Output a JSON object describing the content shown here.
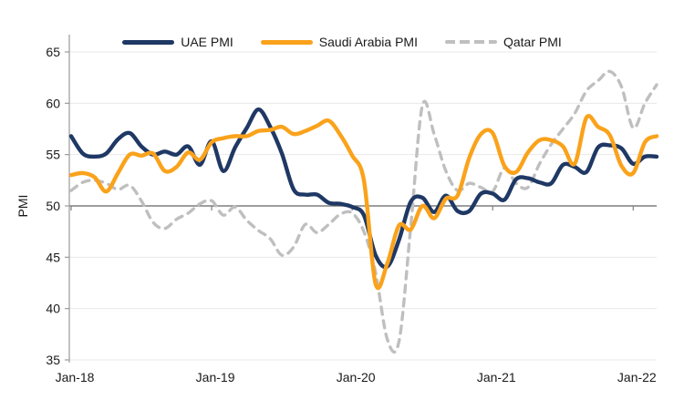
{
  "chart_data": {
    "type": "line",
    "title": "",
    "ylabel": "PMI",
    "xlabel": "",
    "ylim": [
      35,
      65
    ],
    "y_ticks": [
      35,
      40,
      45,
      50,
      55,
      60,
      65
    ],
    "x_axis_tick_labels": [
      {
        "label": "Jan-18",
        "month_index": 0
      },
      {
        "label": "Jan-19",
        "month_index": 12
      },
      {
        "label": "Jan-20",
        "month_index": 24
      },
      {
        "label": "Jan-21",
        "month_index": 36
      },
      {
        "label": "Jan-22",
        "month_index": 48
      }
    ],
    "reference_line_value": 50,
    "grid": "horizontal-light",
    "legend_position": "top-center",
    "months": [
      "Jan-18",
      "Feb-18",
      "Mar-18",
      "Apr-18",
      "May-18",
      "Jun-18",
      "Jul-18",
      "Aug-18",
      "Sep-18",
      "Oct-18",
      "Nov-18",
      "Dec-18",
      "Jan-19",
      "Feb-19",
      "Mar-19",
      "Apr-19",
      "May-19",
      "Jun-19",
      "Jul-19",
      "Aug-19",
      "Sep-19",
      "Oct-19",
      "Nov-19",
      "Dec-19",
      "Jan-20",
      "Feb-20",
      "Mar-20",
      "Apr-20",
      "May-20",
      "Jun-20",
      "Jul-20",
      "Aug-20",
      "Sep-20",
      "Oct-20",
      "Nov-20",
      "Dec-20",
      "Jan-21",
      "Feb-21",
      "Mar-21",
      "Apr-21",
      "May-21",
      "Jun-21",
      "Jul-21",
      "Aug-21",
      "Sep-21",
      "Oct-21",
      "Nov-21",
      "Dec-21",
      "Jan-22",
      "Feb-22",
      "Mar-22"
    ],
    "series": [
      {
        "name": "UAE PMI",
        "color": "#1f3864",
        "line_style": "solid",
        "values": [
          56.8,
          55.1,
          54.8,
          55.1,
          56.5,
          57.1,
          55.8,
          55.0,
          55.3,
          55.0,
          55.8,
          54.0,
          56.3,
          53.4,
          55.7,
          57.6,
          59.4,
          57.7,
          55.1,
          51.6,
          51.1,
          51.1,
          50.3,
          50.2,
          49.9,
          49.1,
          45.2,
          44.1,
          46.7,
          50.4,
          50.8,
          49.4,
          51.0,
          49.5,
          49.5,
          51.2,
          51.2,
          50.6,
          52.6,
          52.7,
          52.3,
          52.2,
          54.0,
          53.8,
          53.3,
          55.7,
          55.9,
          55.6,
          54.1,
          54.8,
          54.8
        ]
      },
      {
        "name": "Saudi Arabia PMI",
        "color": "#faa21b",
        "line_style": "solid",
        "values": [
          53.0,
          53.2,
          52.8,
          51.4,
          53.2,
          55.0,
          54.9,
          55.1,
          53.4,
          53.8,
          55.2,
          54.5,
          56.2,
          56.6,
          56.8,
          56.8,
          57.3,
          57.4,
          57.7,
          57.0,
          57.3,
          57.8,
          58.3,
          56.9,
          54.9,
          52.5,
          42.4,
          44.4,
          48.1,
          47.7,
          50.0,
          48.8,
          50.7,
          51.0,
          54.7,
          57.0,
          57.1,
          53.9,
          53.3,
          55.2,
          56.4,
          56.4,
          55.8,
          54.1,
          58.6,
          57.7,
          56.9,
          53.9,
          53.2,
          56.2,
          56.8
        ]
      },
      {
        "name": "Qatar PMI",
        "color": "#bfbfbf",
        "line_style": "dashed",
        "values": [
          51.5,
          52.3,
          52.5,
          52.2,
          51.6,
          52.0,
          50.5,
          48.4,
          47.8,
          48.7,
          49.3,
          50.2,
          50.5,
          49.1,
          49.9,
          48.6,
          47.6,
          46.8,
          45.2,
          46.0,
          48.2,
          47.4,
          48.2,
          49.2,
          49.3,
          47.5,
          43.5,
          37.0,
          36.8,
          48.0,
          59.8,
          57.0,
          53.4,
          51.5,
          52.2,
          51.8,
          51.4,
          53.7,
          52.2,
          51.8,
          54.1,
          56.0,
          57.5,
          59.0,
          61.2,
          62.2,
          63.1,
          61.6,
          57.6,
          60.0,
          61.8
        ]
      }
    ],
    "axis_color": "#9a9a9a",
    "gridline_color": "#e8e8e8",
    "reference_line_color": "#7f7f7f",
    "tick_label_color": "#1a1a1a"
  }
}
